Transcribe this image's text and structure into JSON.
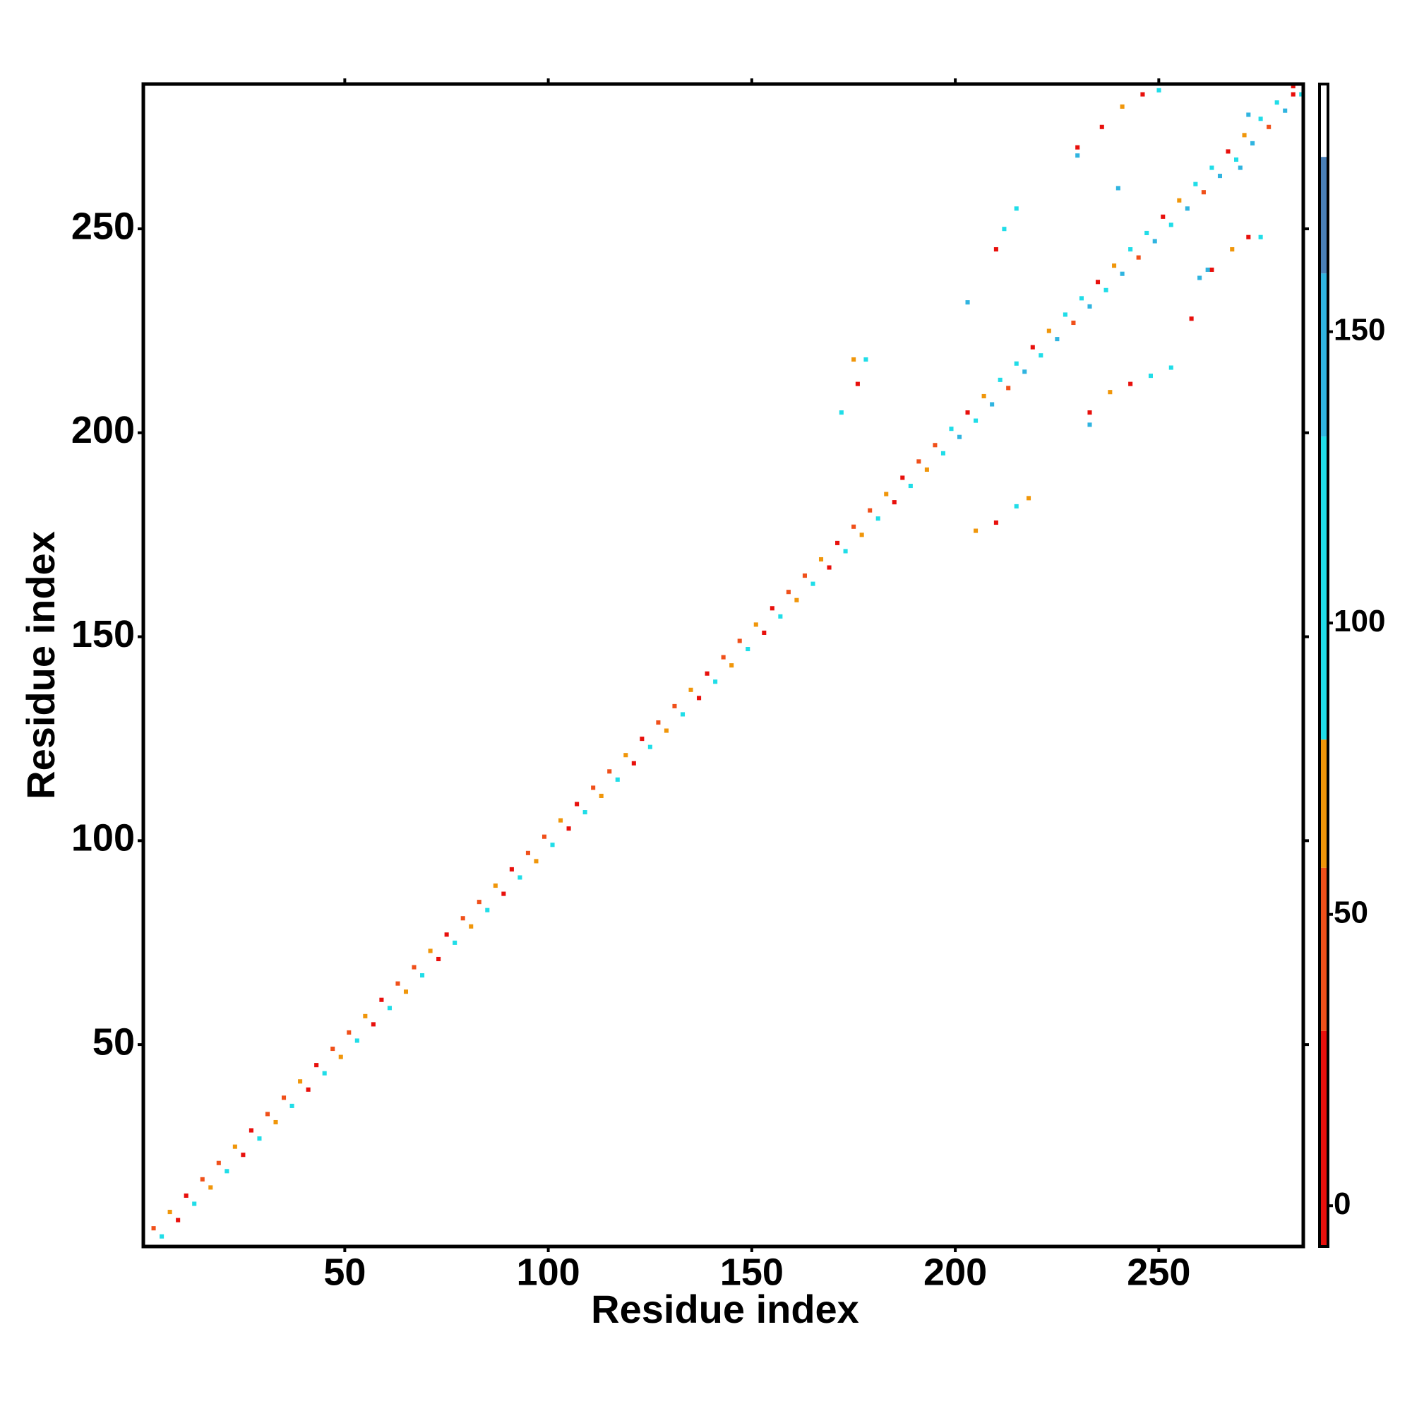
{
  "chart_data": {
    "type": "heatmap",
    "x_label": "Residue index",
    "y_label": "Residue index",
    "xlim": [
      0.5,
      285.5
    ],
    "ylim": [
      0.5,
      285.5
    ],
    "xticks": [
      50,
      100,
      150,
      200,
      250
    ],
    "yticks": [
      50,
      100,
      150,
      200,
      250
    ],
    "cells": {
      "x": [
        3,
        5,
        7,
        9,
        11,
        13,
        15,
        17,
        19,
        21,
        23,
        25,
        27,
        29,
        31,
        33,
        35,
        37,
        39,
        41,
        43,
        45,
        47,
        49,
        51,
        53,
        55,
        57,
        59,
        61,
        63,
        65,
        67,
        69,
        71,
        73,
        75,
        77,
        79,
        81,
        83,
        85,
        87,
        89,
        91,
        93,
        95,
        97,
        99,
        101,
        103,
        105,
        107,
        109,
        111,
        113,
        115,
        117,
        119,
        121,
        123,
        125,
        127,
        129,
        131,
        133,
        135,
        137,
        139,
        141,
        143,
        145,
        147,
        149,
        151,
        153,
        155,
        157,
        159,
        161,
        163,
        165,
        167,
        169,
        171,
        173,
        175,
        177,
        179,
        181,
        183,
        185,
        187,
        189,
        191,
        193,
        195,
        197,
        199,
        201,
        203,
        205,
        207,
        209,
        211,
        213,
        215,
        217,
        219,
        221,
        223,
        225,
        227,
        229,
        231,
        233,
        235,
        237,
        239,
        241,
        243,
        245,
        247,
        249,
        251,
        253,
        255,
        257,
        259,
        261,
        263,
        265,
        267,
        269,
        271,
        273,
        275,
        277,
        279,
        281,
        283,
        285,
        176,
        175,
        172,
        178,
        205,
        210,
        215,
        218,
        203,
        210,
        212,
        215,
        233,
        238,
        243,
        248,
        253,
        233,
        258,
        263,
        268,
        272,
        275,
        260,
        230,
        236,
        241,
        246,
        250,
        240,
        270,
        272,
        262,
        283,
        230
      ],
      "y": [
        5,
        3,
        9,
        7,
        13,
        11,
        17,
        15,
        21,
        19,
        25,
        23,
        29,
        27,
        33,
        31,
        37,
        35,
        41,
        39,
        45,
        43,
        49,
        47,
        53,
        51,
        57,
        55,
        61,
        59,
        65,
        63,
        69,
        67,
        73,
        71,
        77,
        75,
        81,
        79,
        85,
        83,
        89,
        87,
        93,
        91,
        97,
        95,
        101,
        99,
        105,
        103,
        109,
        107,
        113,
        111,
        117,
        115,
        121,
        119,
        125,
        123,
        129,
        127,
        133,
        131,
        137,
        135,
        141,
        139,
        145,
        143,
        149,
        147,
        153,
        151,
        157,
        155,
        161,
        159,
        165,
        163,
        169,
        167,
        173,
        171,
        177,
        175,
        181,
        179,
        185,
        183,
        189,
        187,
        193,
        191,
        197,
        195,
        201,
        199,
        205,
        203,
        209,
        207,
        213,
        211,
        217,
        215,
        221,
        219,
        225,
        223,
        229,
        227,
        233,
        231,
        237,
        235,
        241,
        239,
        245,
        243,
        249,
        247,
        253,
        251,
        257,
        255,
        261,
        259,
        265,
        263,
        269,
        267,
        273,
        271,
        277,
        275,
        281,
        279,
        285,
        283,
        212,
        218,
        205,
        218,
        176,
        178,
        182,
        184,
        232,
        245,
        250,
        255,
        205,
        210,
        212,
        214,
        216,
        202,
        228,
        240,
        245,
        248,
        248,
        238,
        270,
        275,
        280,
        283,
        284,
        260,
        265,
        278,
        240,
        283,
        268
      ],
      "values": [
        45,
        100,
        65,
        10,
        10,
        100,
        45,
        65,
        45,
        100,
        65,
        10,
        10,
        100,
        45,
        65,
        45,
        100,
        65,
        10,
        10,
        100,
        45,
        65,
        45,
        100,
        65,
        10,
        10,
        100,
        45,
        65,
        45,
        100,
        65,
        10,
        10,
        100,
        45,
        65,
        45,
        100,
        65,
        10,
        10,
        100,
        45,
        65,
        45,
        100,
        65,
        10,
        10,
        100,
        45,
        65,
        45,
        100,
        65,
        10,
        10,
        100,
        45,
        65,
        45,
        100,
        65,
        10,
        10,
        100,
        45,
        65,
        45,
        100,
        65,
        10,
        10,
        100,
        45,
        65,
        45,
        100,
        65,
        10,
        10,
        100,
        45,
        65,
        45,
        100,
        65,
        10,
        10,
        100,
        45,
        65,
        45,
        100,
        100,
        140,
        10,
        100,
        65,
        140,
        100,
        45,
        100,
        140,
        10,
        100,
        65,
        140,
        100,
        45,
        100,
        140,
        10,
        100,
        65,
        140,
        100,
        45,
        100,
        140,
        10,
        100,
        65,
        140,
        100,
        45,
        100,
        140,
        10,
        100,
        65,
        140,
        100,
        45,
        100,
        140,
        10,
        100,
        10,
        65,
        100,
        100,
        65,
        10,
        100,
        65,
        140,
        10,
        100,
        100,
        10,
        65,
        10,
        100,
        100,
        140,
        10,
        10,
        65,
        10,
        100,
        140,
        10,
        10,
        65,
        10,
        100,
        140,
        140,
        140,
        140,
        10,
        140
      ]
    },
    "colorbar": {
      "bounds": [
        -7,
        30,
        58,
        80,
        132,
        160,
        180,
        192.5
      ],
      "colors": [
        "#e8100c",
        "#f0501a",
        "#f0960a",
        "#20dde8",
        "#30b4e0",
        "#4a80b8",
        "#ffffff"
      ],
      "ticks": [
        0,
        50,
        100,
        150
      ]
    }
  }
}
